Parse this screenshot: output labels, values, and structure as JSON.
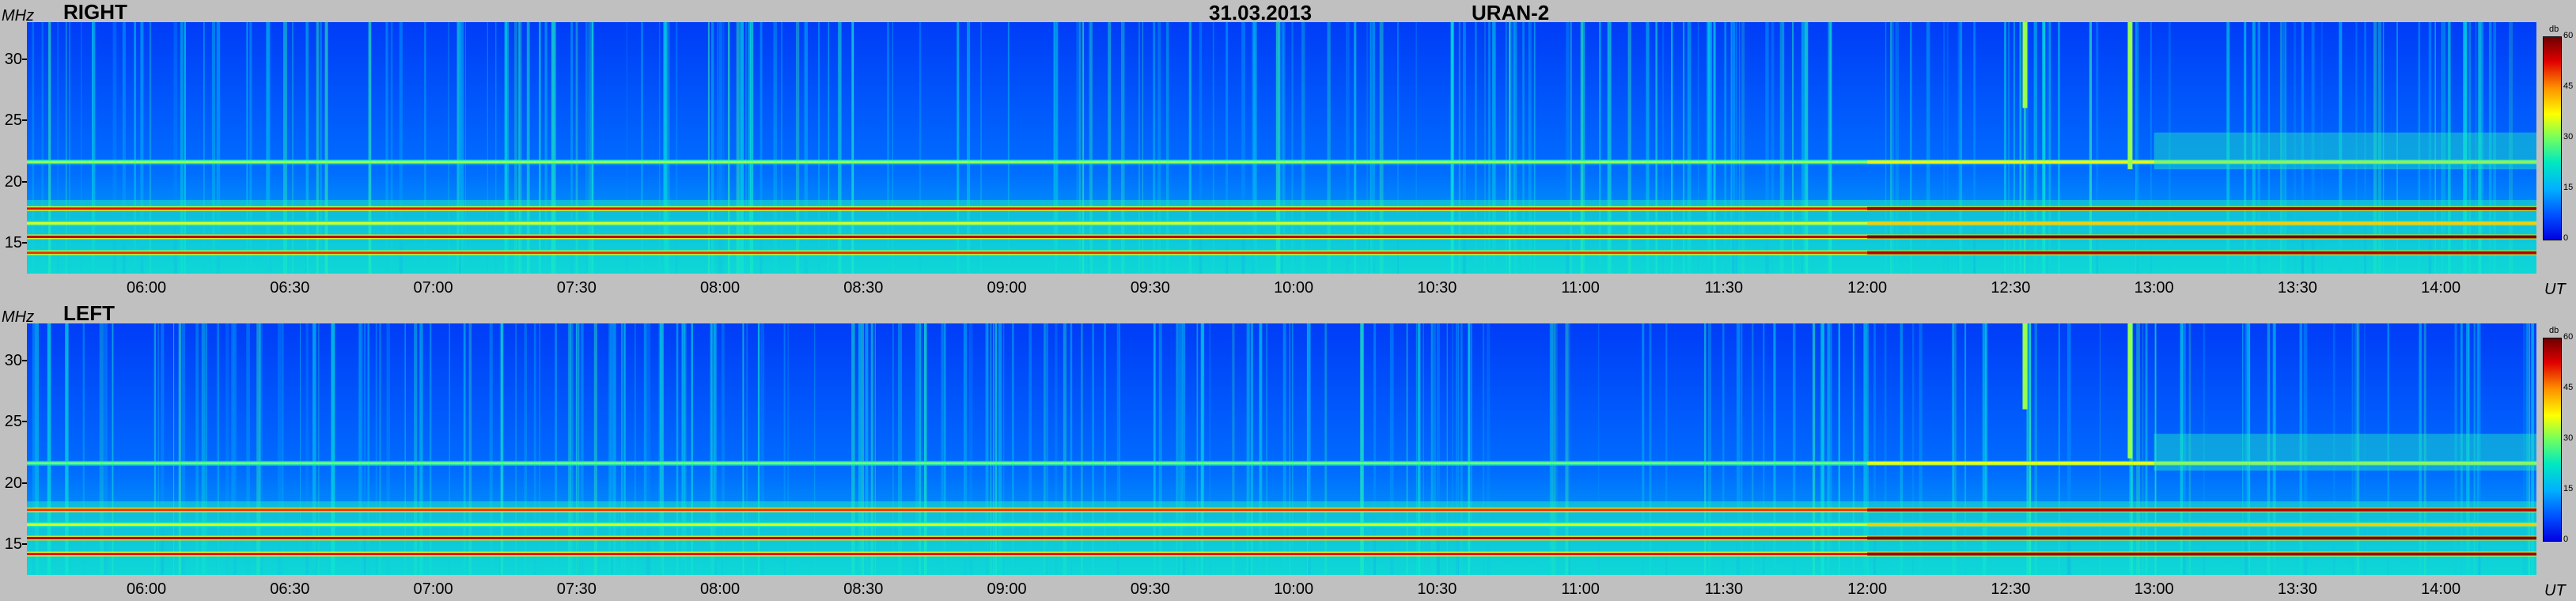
{
  "header": {
    "date": "31.03.2013",
    "station": "URAN-2"
  },
  "colors": {
    "background": "#c0c0c0",
    "low": "#0000e0",
    "mid": "#ffff00",
    "high": "#700000"
  },
  "chart_data": [
    {
      "type": "heatmap",
      "title": "RIGHT",
      "ylabel": "MHz",
      "xlabel": "UT",
      "x_tick_labels": [
        "06:00",
        "06:30",
        "07:00",
        "07:30",
        "08:00",
        "08:30",
        "09:00",
        "09:30",
        "10:00",
        "10:30",
        "11:00",
        "11:30",
        "12:00",
        "12:30",
        "13:00",
        "13:30",
        "14:00"
      ],
      "y_tick_labels": [
        "15",
        "20",
        "25",
        "30"
      ],
      "xlim": [
        "05:35",
        "14:20"
      ],
      "ylim": [
        12.5,
        33
      ],
      "colorbar": {
        "label": "db",
        "ticks": [
          0,
          15,
          30,
          45,
          60
        ],
        "range": [
          0,
          60
        ]
      },
      "intensity_bands_mhz": [
        {
          "freq": 14.2,
          "db": 50
        },
        {
          "freq": 15.5,
          "db": 55
        },
        {
          "freq": 16.6,
          "db": 35
        },
        {
          "freq": 17.8,
          "db": 52
        },
        {
          "freq": 21.6,
          "db": 32
        }
      ],
      "bursts_ut": [
        {
          "time": "12:33",
          "f_min": 26,
          "f_max": 33
        },
        {
          "time": "12:55",
          "f_min": 21,
          "f_max": 33
        }
      ]
    },
    {
      "type": "heatmap",
      "title": "LEFT",
      "ylabel": "MHz",
      "xlabel": "UT",
      "x_tick_labels": [
        "06:00",
        "06:30",
        "07:00",
        "07:30",
        "08:00",
        "08:30",
        "09:00",
        "09:30",
        "10:00",
        "10:30",
        "11:00",
        "11:30",
        "12:00",
        "12:30",
        "13:00",
        "13:30",
        "14:00"
      ],
      "y_tick_labels": [
        "15",
        "20",
        "25",
        "30"
      ],
      "xlim": [
        "05:35",
        "14:20"
      ],
      "ylim": [
        12.5,
        33
      ],
      "colorbar": {
        "label": "db",
        "ticks": [
          0,
          15,
          30,
          45,
          60
        ],
        "range": [
          0,
          60
        ]
      },
      "intensity_bands_mhz": [
        {
          "freq": 14.2,
          "db": 52
        },
        {
          "freq": 15.5,
          "db": 56
        },
        {
          "freq": 16.6,
          "db": 35
        },
        {
          "freq": 17.8,
          "db": 50
        },
        {
          "freq": 21.6,
          "db": 30
        }
      ],
      "bursts_ut": [
        {
          "time": "12:33",
          "f_min": 26,
          "f_max": 33
        },
        {
          "time": "12:55",
          "f_min": 22,
          "f_max": 33
        }
      ]
    }
  ]
}
